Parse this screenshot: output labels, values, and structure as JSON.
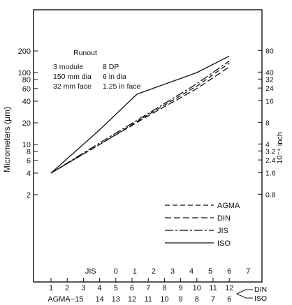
{
  "chart_data": {
    "type": "line",
    "ylabel_left": "Micrometers (μm)",
    "ylabel_right": "10⁻⁴ inch",
    "y_scale": "log",
    "ylim": [
      1.5,
      270
    ],
    "grid": false,
    "legend_position": "lower-right",
    "left_ticks": [
      {
        "value": 2,
        "label": "2"
      },
      {
        "value": 4,
        "label": "4"
      },
      {
        "value": 6,
        "label": "6"
      },
      {
        "value": 8,
        "label": "8"
      },
      {
        "value": 10,
        "label": "10"
      },
      {
        "value": 20,
        "label": "20"
      },
      {
        "value": 40,
        "label": "40"
      },
      {
        "value": 60,
        "label": "60"
      },
      {
        "value": 80,
        "label": "80"
      },
      {
        "value": 100,
        "label": "100"
      },
      {
        "value": 200,
        "label": "200"
      }
    ],
    "right_ticks": [
      {
        "value": 0.8,
        "label": "0.8"
      },
      {
        "value": 1.6,
        "label": "1.6"
      },
      {
        "value": 2.4,
        "label": "2.4"
      },
      {
        "value": 3.2,
        "label": "3.2"
      },
      {
        "value": 4,
        "label": "4"
      },
      {
        "value": 8,
        "label": "8"
      },
      {
        "value": 16,
        "label": "16"
      },
      {
        "value": 24,
        "label": "24"
      },
      {
        "value": 32,
        "label": "32"
      },
      {
        "value": 40,
        "label": "40"
      },
      {
        "value": 80,
        "label": "80"
      }
    ],
    "x_din_ticks": [
      "1",
      "2",
      "3",
      "4",
      "5",
      "6",
      "7",
      "8",
      "9",
      "10",
      "11",
      "12"
    ],
    "x_din_label": "DIN",
    "x_iso_label": "ISO",
    "x_agma_ticks": [
      "AGMA−15",
      "14",
      "13",
      "12",
      "11",
      "10",
      "9",
      "8",
      "7",
      "6"
    ],
    "x_jis_label": "JIS",
    "x_jis_ticks": [
      "0",
      "1",
      "2",
      "3",
      "4",
      "5",
      "6",
      "7"
    ],
    "annotation": {
      "title": "Runout",
      "lines": [
        [
          "3 module",
          "8 DP"
        ],
        [
          "150 mm dia",
          "6 in dia"
        ],
        [
          "32 mm face",
          "1.25 in face"
        ]
      ]
    },
    "series": [
      {
        "name": "AGMA",
        "dash": "7,4",
        "points": [
          [
            1,
            4.0
          ],
          [
            4,
            10.0
          ],
          [
            7,
            26.0
          ],
          [
            10,
            65.0
          ],
          [
            12,
            135.0
          ]
        ]
      },
      {
        "name": "DIN",
        "dash": "9,4",
        "points": [
          [
            1,
            4.0
          ],
          [
            4,
            10.0
          ],
          [
            7,
            25.0
          ],
          [
            10,
            60.0
          ],
          [
            12,
            120.0
          ]
        ]
      },
      {
        "name": "JIS",
        "dash": "12,3,3,3",
        "points": [
          [
            1,
            4.0
          ],
          [
            4,
            10.5
          ],
          [
            7,
            27.0
          ],
          [
            10,
            70.0
          ],
          [
            12,
            145.0
          ]
        ]
      },
      {
        "name": "ISO",
        "dash": "",
        "points": [
          [
            1,
            4.0
          ],
          [
            4,
            16.0
          ],
          [
            6.3,
            50.0
          ],
          [
            10,
            100.0
          ],
          [
            12,
            170.0
          ]
        ]
      }
    ]
  }
}
